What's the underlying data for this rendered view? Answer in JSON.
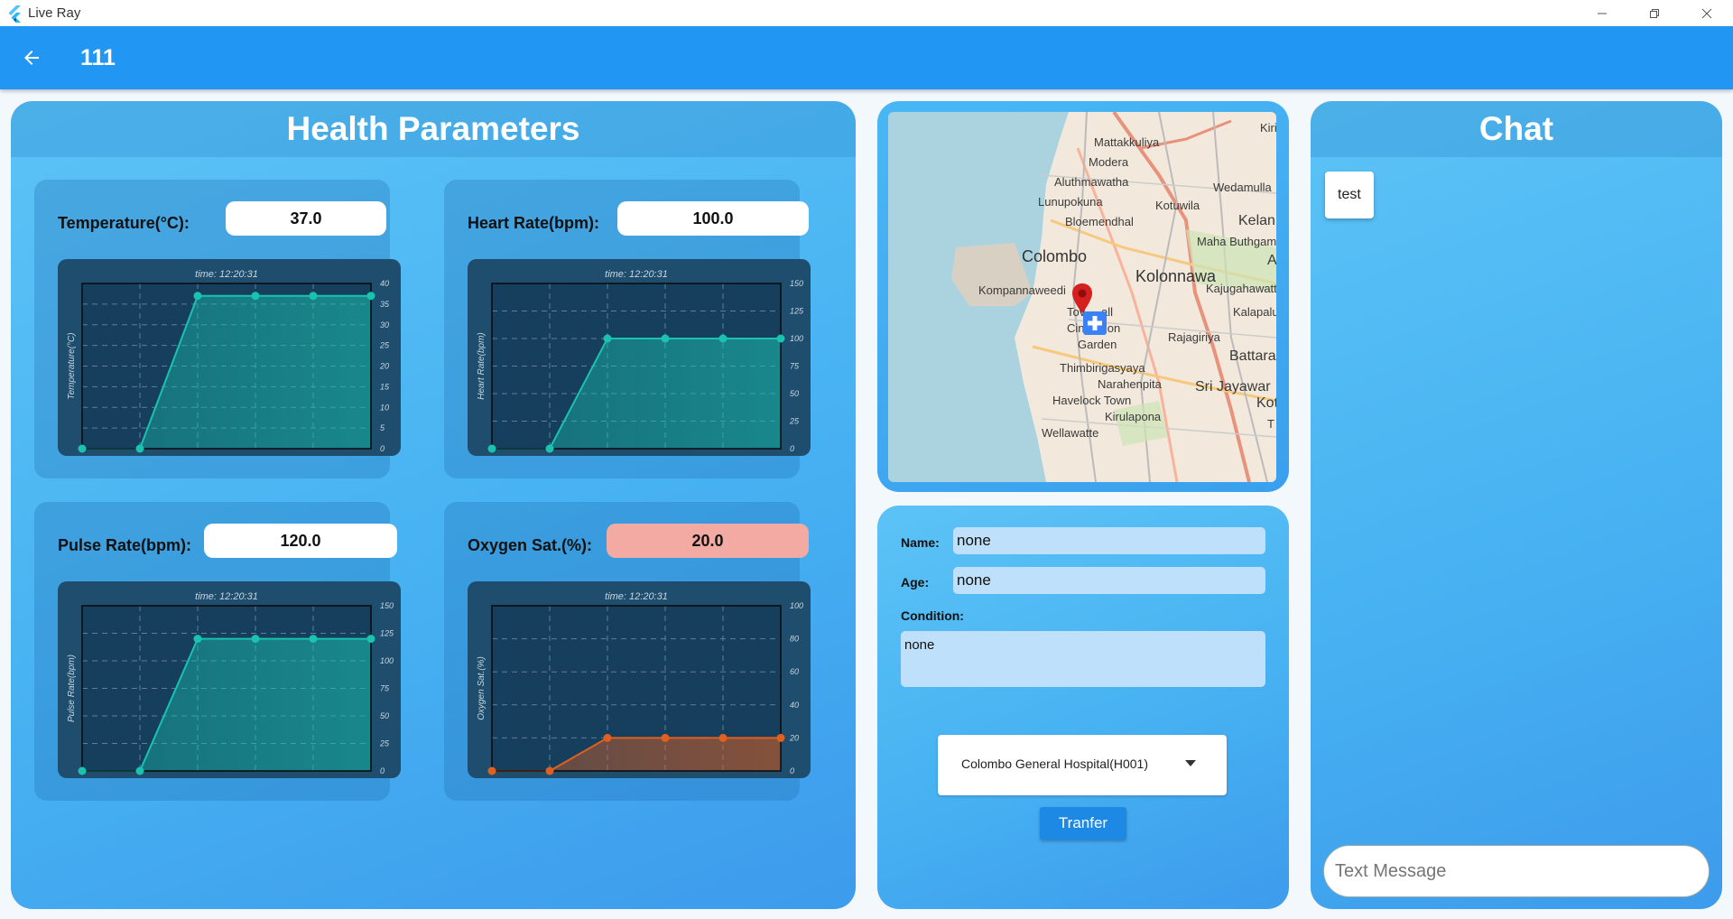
{
  "window": {
    "title": "Live Ray"
  },
  "appbar": {
    "title": "111",
    "back_icon": "arrow-left-icon"
  },
  "health": {
    "title": "Health Parameters",
    "cards": [
      {
        "label": "Temperature(°C):",
        "value": "37.0",
        "alert": false,
        "chart_data": {
          "type": "area",
          "title": "time: 12:20:31",
          "ylabel": "Temperature(°C)",
          "yticks": [
            "0",
            "5",
            "10",
            "15",
            "20",
            "25",
            "30",
            "35",
            "40"
          ],
          "ylim": [
            0,
            40
          ],
          "values": [
            0,
            0,
            37,
            37,
            37,
            37
          ],
          "color": "#19c3b0"
        }
      },
      {
        "label": "Heart Rate(bpm):",
        "value": "100.0",
        "alert": false,
        "chart_data": {
          "type": "area",
          "title": "time: 12:20:31",
          "ylabel": "Heart Rate(bpm)",
          "yticks": [
            "0",
            "25",
            "50",
            "75",
            "100",
            "125",
            "150"
          ],
          "ylim": [
            0,
            150
          ],
          "values": [
            0,
            0,
            100,
            100,
            100,
            100
          ],
          "color": "#19c3b0"
        }
      },
      {
        "label": "Pulse Rate(bpm):",
        "value": "120.0",
        "alert": false,
        "chart_data": {
          "type": "area",
          "title": "time: 12:20:31",
          "ylabel": "Pulse Rate(bpm)",
          "yticks": [
            "0",
            "25",
            "50",
            "75",
            "100",
            "125",
            "150"
          ],
          "ylim": [
            0,
            150
          ],
          "values": [
            0,
            0,
            120,
            120,
            120,
            120
          ],
          "color": "#19c3b0"
        }
      },
      {
        "label": "Oxygen Sat.(%):",
        "value": "20.0",
        "alert": true,
        "chart_data": {
          "type": "area",
          "title": "time: 12:20:31",
          "ylabel": "Oxygen Sat.(%)",
          "yticks": [
            "0",
            "20",
            "40",
            "60",
            "80",
            "100"
          ],
          "ylim": [
            0,
            100
          ],
          "values": [
            0,
            0,
            20,
            20,
            20,
            20
          ],
          "color": "#e0601f"
        }
      }
    ]
  },
  "map": {
    "places": [
      "Kiri",
      "Mattakkuliya",
      "Modera",
      "Aluthmawatha",
      "Wedamulla",
      "Lunupokuna",
      "Kotuwila",
      "Bloemendhal",
      "Kelan",
      "Maha Buthgam",
      "Colombo",
      "Kolonnawa",
      "A",
      "Kompannaweedi",
      "Kajugahawatt",
      "Tov",
      "all",
      "Kalapalu",
      "Cinnamon",
      "Garden",
      "Rajagiriya",
      "Battara",
      "Thimbirigasyaya",
      "Narahenpita",
      "Sri Jayawar",
      "Havelock Town",
      "Kot",
      "Kirulapona",
      "Wellawatte",
      "T"
    ],
    "marker_icon": "location-pin-icon",
    "hospital_icon": "hospital-plus-icon"
  },
  "patient": {
    "name_label": "Name:",
    "name_value": "none",
    "age_label": "Age:",
    "age_value": "none",
    "condition_label": "Condition:",
    "condition_value": "none",
    "hospital_selected": "Colombo General Hospital(H001)",
    "transfer_label": "Tranfer"
  },
  "chat": {
    "title": "Chat",
    "messages": [
      "test"
    ],
    "input_placeholder": "Text Message"
  }
}
